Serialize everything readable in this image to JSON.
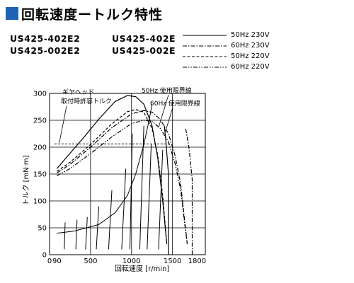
{
  "title": "回転速度ートルク特性",
  "models": {
    "col1": [
      "US425-402E2",
      "US425-002E2"
    ],
    "col2": [
      "US425-402E",
      "US425-002E"
    ]
  },
  "legend": [
    {
      "label": "50Hz 230V",
      "style": "solid"
    },
    {
      "label": "60Hz 230V",
      "style": "dashdot"
    },
    {
      "label": "50Hz 220V",
      "style": "dashed"
    },
    {
      "label": "60Hz 220V",
      "style": "dashdotdot"
    }
  ],
  "annotations": {
    "gear_head": [
      "ギヤヘッド",
      "取付時許容トルク"
    ],
    "limit_50": "50Hz 使用限界線",
    "limit_60": "60Hz 使用限界線"
  },
  "chart_data": {
    "type": "line",
    "xlabel": "回転速度 [r/min]",
    "ylabel": "トルク [mN·m]",
    "xlim": [
      0,
      1900
    ],
    "ylim": [
      0,
      300
    ],
    "x_ticks": [
      0,
      90,
      500,
      1000,
      1500,
      1800
    ],
    "y_ticks": [
      0,
      50,
      100,
      150,
      200,
      250,
      300
    ],
    "grid": true,
    "gear_head_torque": 206,
    "series": [
      {
        "name": "50Hz 230V",
        "style": "solid",
        "points": [
          [
            90,
            160
          ],
          [
            200,
            180
          ],
          [
            400,
            215
          ],
          [
            600,
            252
          ],
          [
            800,
            285
          ],
          [
            950,
            296
          ],
          [
            1050,
            294
          ],
          [
            1150,
            280
          ],
          [
            1250,
            240
          ],
          [
            1320,
            180
          ],
          [
            1380,
            100
          ],
          [
            1430,
            20
          ]
        ]
      },
      {
        "name": "60Hz 230V",
        "style": "dashdot",
        "points": [
          [
            90,
            152
          ],
          [
            250,
            168
          ],
          [
            500,
            200
          ],
          [
            750,
            235
          ],
          [
            1000,
            262
          ],
          [
            1150,
            268
          ],
          [
            1250,
            265
          ],
          [
            1350,
            252
          ],
          [
            1450,
            225
          ],
          [
            1530,
            185
          ],
          [
            1600,
            130
          ],
          [
            1650,
            60
          ],
          [
            1680,
            20
          ]
        ]
      },
      {
        "name": "50Hz 220V",
        "style": "dashed",
        "points": [
          [
            90,
            155
          ],
          [
            250,
            172
          ],
          [
            500,
            205
          ],
          [
            750,
            242
          ],
          [
            950,
            266
          ],
          [
            1050,
            270
          ],
          [
            1150,
            265
          ],
          [
            1250,
            235
          ],
          [
            1320,
            185
          ],
          [
            1380,
            110
          ],
          [
            1430,
            20
          ]
        ]
      },
      {
        "name": "60Hz 220V",
        "style": "dashdotdot",
        "points": [
          [
            90,
            147
          ],
          [
            250,
            160
          ],
          [
            500,
            188
          ],
          [
            750,
            218
          ],
          [
            1000,
            244
          ],
          [
            1150,
            250
          ],
          [
            1250,
            248
          ],
          [
            1350,
            235
          ],
          [
            1450,
            210
          ],
          [
            1530,
            170
          ],
          [
            1600,
            120
          ],
          [
            1650,
            55
          ],
          [
            1680,
            20
          ]
        ]
      }
    ],
    "load_lines": [
      [
        [
          90,
          40
        ],
        [
          300,
          44
        ],
        [
          600,
          56
        ],
        [
          800,
          78
        ],
        [
          950,
          110
        ],
        [
          1050,
          150
        ],
        [
          1150,
          205
        ],
        [
          1220,
          255
        ],
        [
          1250,
          280
        ]
      ],
      [
        [
          180,
          10
        ],
        [
          190,
          60
        ]
      ],
      [
        [
          320,
          10
        ],
        [
          335,
          65
        ]
      ],
      [
        [
          440,
          10
        ],
        [
          460,
          70
        ]
      ],
      [
        [
          570,
          10
        ],
        [
          600,
          90
        ]
      ],
      [
        [
          720,
          10
        ],
        [
          760,
          120
        ]
      ],
      [
        [
          880,
          10
        ],
        [
          930,
          160
        ]
      ],
      [
        [
          980,
          10
        ],
        [
          1010,
          225
        ]
      ],
      [
        [
          1100,
          10
        ],
        [
          1150,
          240
        ]
      ],
      [
        [
          1190,
          10
        ],
        [
          1240,
          205
        ]
      ],
      [
        [
          1330,
          10
        ],
        [
          1380,
          195
        ]
      ]
    ],
    "limit_50": [
      [
        1450,
        0
      ],
      [
        1450,
        150
      ],
      [
        1420,
        210
      ],
      [
        1400,
        240
      ]
    ],
    "limit_60": [
      [
        1740,
        0
      ],
      [
        1740,
        140
      ],
      [
        1700,
        200
      ],
      [
        1660,
        235
      ]
    ]
  }
}
